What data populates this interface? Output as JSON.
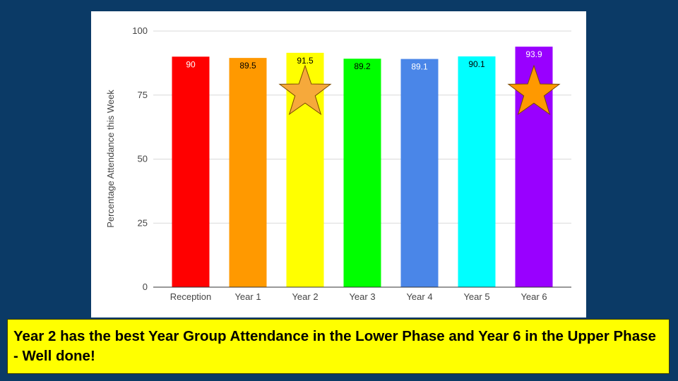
{
  "chart_data": {
    "type": "bar",
    "categories": [
      "Reception",
      "Year 1",
      "Year 2",
      "Year 3",
      "Year 4",
      "Year 5",
      "Year 6"
    ],
    "values": [
      90,
      89.5,
      91.5,
      89.2,
      89.1,
      90.1,
      93.9
    ],
    "value_labels": [
      "90",
      "89.5",
      "91.5",
      "89.2",
      "89.1",
      "90.1",
      "93.9"
    ],
    "bar_colors": [
      "#ff0000",
      "#ff9900",
      "#ffff00",
      "#00ff00",
      "#4a86e8",
      "#00ffff",
      "#9900ff"
    ],
    "label_colors": [
      "#ffffff",
      "#000000",
      "#000000",
      "#000000",
      "#ffffff",
      "#000000",
      "#ffffff"
    ],
    "title": "",
    "xlabel": "",
    "ylabel": "Percentage Attendance this Week",
    "ylim": [
      0,
      100
    ],
    "yticks": [
      0,
      25,
      50,
      75,
      100
    ],
    "grid": true,
    "legend": "none",
    "highlight_stars": [
      {
        "category": "Year 2",
        "color": "#f6a93b",
        "icon": "star-icon"
      },
      {
        "category": "Year 6",
        "color": "#ff9900",
        "icon": "star-icon"
      }
    ]
  },
  "caption": {
    "text": "Year 2 has the best Year Group Attendance in the Lower Phase and Year 6 in the Upper Phase - Well done!"
  },
  "colors": {
    "background": "#0b3a66",
    "caption_background": "#ffff00",
    "grid": "#d9d9d9"
  }
}
